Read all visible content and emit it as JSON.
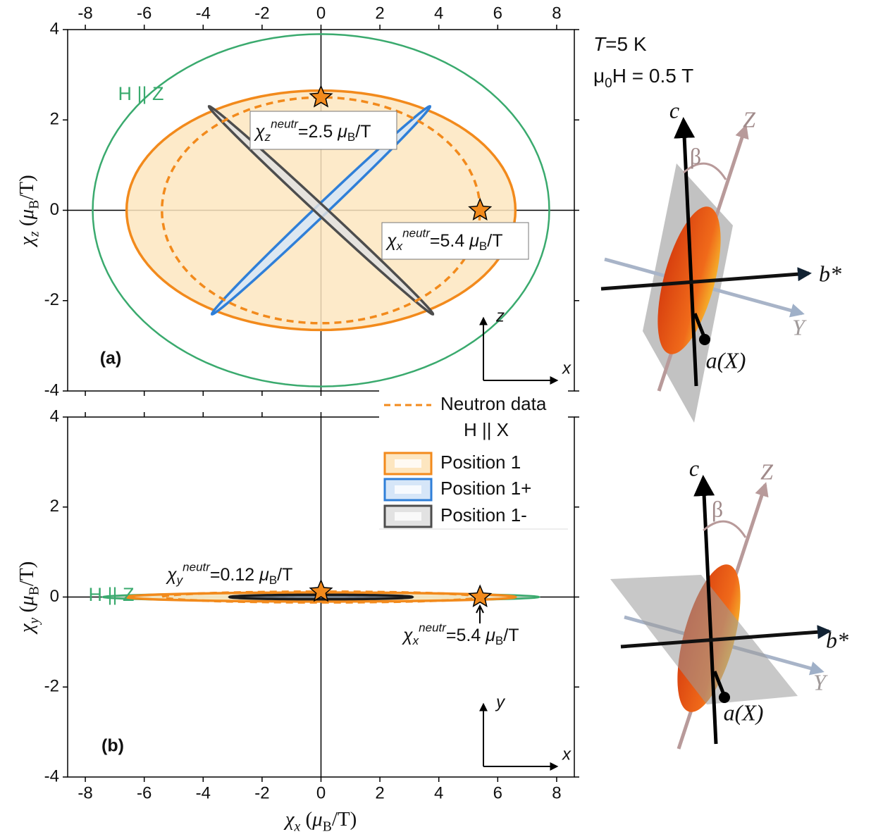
{
  "chart_data": [
    {
      "type": "ellipse",
      "panel_label": "(a)",
      "xlim": [
        -8.6,
        8.6
      ],
      "ylim": [
        -4,
        4
      ],
      "xticks": [
        -8,
        -6,
        -4,
        -2,
        0,
        2,
        4,
        6,
        8
      ],
      "yticks": [
        -4,
        -2,
        0,
        2,
        4
      ],
      "x_tick_side": "top",
      "ylabel": [
        {
          "text": "χ",
          "italic": true
        },
        {
          "text": "z",
          "italic": true,
          "shift": "sub"
        },
        {
          "text": " ("
        },
        {
          "text": "μ",
          "italic": true
        },
        {
          "text": "B",
          "shift": "sub"
        },
        {
          "text": "/T)"
        }
      ],
      "axes_glyph": {
        "horizontal": "x",
        "vertical": "z"
      },
      "legend_title": "H || X",
      "series": [
        {
          "label": "H || Z",
          "color": "#3aaa6e",
          "line": "solid",
          "fill": "none",
          "axis_end": [
            7.75,
            0
          ],
          "minor_end": [
            0,
            3.9
          ]
        },
        {
          "name": "Position 1",
          "color": "#f28a1c",
          "line": "solid",
          "fill": "#fde6c0",
          "axis_end": [
            6.6,
            0
          ],
          "minor_end": [
            0,
            2.65
          ]
        },
        {
          "name": "Neutron data",
          "color": "#f28a1c",
          "line": "dashed",
          "fill": "none",
          "axis_end": [
            5.4,
            0
          ],
          "minor_end": [
            0,
            2.5
          ]
        },
        {
          "name": "Position 1+",
          "color": "#2f7fd8",
          "line": "solid",
          "fill": "#d6e6f8",
          "axis_end": [
            3.7,
            2.3
          ],
          "minor_end": [
            0.13,
            -0.09
          ]
        },
        {
          "name": "Position 1-",
          "color": "#4d4d4d",
          "line": "solid",
          "fill": "#e2e2e2",
          "axis_end": [
            -3.8,
            2.3
          ],
          "minor_end": [
            0.11,
            0.08
          ]
        }
      ],
      "points": [
        {
          "x": 0,
          "y": 2.5
        },
        {
          "x": 5.4,
          "y": 0
        }
      ],
      "annotations": [
        [
          {
            "text": "χ",
            "italic": true
          },
          {
            "text": "z",
            "italic": true,
            "shift": "sub"
          },
          {
            "text": "neutr",
            "italic": true,
            "shift": "sup"
          },
          {
            "text": "=2.5 "
          },
          {
            "text": "μ",
            "italic": true
          },
          {
            "text": "B",
            "shift": "sub"
          },
          {
            "text": "/T"
          }
        ],
        [
          {
            "text": "χ",
            "italic": true
          },
          {
            "text": "x",
            "italic": true,
            "shift": "sub"
          },
          {
            "text": "neutr",
            "italic": true,
            "shift": "sup"
          },
          {
            "text": "=5.4 "
          },
          {
            "text": "μ",
            "italic": true
          },
          {
            "text": "B",
            "shift": "sub"
          },
          {
            "text": "/T"
          }
        ]
      ]
    },
    {
      "type": "ellipse",
      "panel_label": "(b)",
      "xlim": [
        -8.6,
        8.6
      ],
      "ylim": [
        -4,
        4
      ],
      "xticks": [
        -8,
        -6,
        -4,
        -2,
        0,
        2,
        4,
        6,
        8
      ],
      "yticks": [
        -4,
        -2,
        0,
        2,
        4
      ],
      "x_tick_side": "bottom",
      "ylabel": [
        {
          "text": "χ",
          "italic": true
        },
        {
          "text": "y",
          "italic": true,
          "shift": "sub"
        },
        {
          "text": " ("
        },
        {
          "text": "μ",
          "italic": true
        },
        {
          "text": "B",
          "shift": "sub"
        },
        {
          "text": "/T)"
        }
      ],
      "xlabel": [
        {
          "text": "χ",
          "italic": true
        },
        {
          "text": "x",
          "italic": true,
          "shift": "sub"
        },
        {
          "text": " ("
        },
        {
          "text": "μ",
          "italic": true
        },
        {
          "text": "B",
          "shift": "sub"
        },
        {
          "text": "/T)"
        }
      ],
      "axes_glyph": {
        "horizontal": "x",
        "vertical": "y"
      },
      "series": [
        {
          "label": "H || Z",
          "color": "#3aaa6e",
          "line": "solid",
          "fill": "#bfe3cc",
          "axis_end": [
            7.4,
            0
          ],
          "minor_end": [
            0,
            0.09
          ]
        },
        {
          "color": "#f28a1c",
          "line": "solid",
          "fill": "#fde6c0",
          "axis_end": [
            6.6,
            0
          ],
          "minor_end": [
            0,
            0.1
          ]
        },
        {
          "color": "#f28a1c",
          "line": "dashed",
          "fill": "none",
          "axis_end": [
            5.4,
            0
          ],
          "minor_end": [
            0,
            0.12
          ]
        },
        {
          "color": "#2f7fd8",
          "line": "solid",
          "fill": "#d6e6f8",
          "axis_end": [
            2.9,
            0
          ],
          "minor_end": [
            0,
            0.03
          ]
        },
        {
          "color": "#1a1a1a",
          "line": "solid",
          "fill": "#888888",
          "axis_end": [
            3.1,
            0
          ],
          "minor_end": [
            0,
            0.05
          ]
        }
      ],
      "points": [
        {
          "x": 0,
          "y": 0.12
        },
        {
          "x": 5.4,
          "y": 0
        }
      ],
      "annotations": [
        [
          {
            "text": "χ",
            "italic": true
          },
          {
            "text": "y",
            "italic": true,
            "shift": "sub"
          },
          {
            "text": "neutr",
            "italic": true,
            "shift": "sup"
          },
          {
            "text": "=0.12 "
          },
          {
            "text": "μ",
            "italic": true
          },
          {
            "text": "B",
            "shift": "sub"
          },
          {
            "text": "/T"
          }
        ],
        [
          {
            "text": "χ",
            "italic": true
          },
          {
            "text": "x",
            "italic": true,
            "shift": "sub"
          },
          {
            "text": "neutr",
            "italic": true,
            "shift": "sup"
          },
          {
            "text": "=5.4 "
          },
          {
            "text": "μ",
            "italic": true
          },
          {
            "text": "B",
            "shift": "sub"
          },
          {
            "text": "/T"
          }
        ]
      ]
    }
  ],
  "conditions": [
    [
      {
        "text": "T",
        "italic": true
      },
      {
        "text": "=5 K"
      }
    ],
    [
      {
        "text": "μ"
      },
      {
        "text": "0",
        "shift": "sub"
      },
      {
        "text": "H = 0.5 T"
      }
    ]
  ],
  "diagrams": [
    {
      "labels": [
        "c",
        "Z",
        "β",
        "b*",
        "Y",
        "a(X)"
      ]
    },
    {
      "labels": [
        "c",
        "Z",
        "β",
        "b*",
        "Y",
        "a(X)"
      ]
    }
  ]
}
